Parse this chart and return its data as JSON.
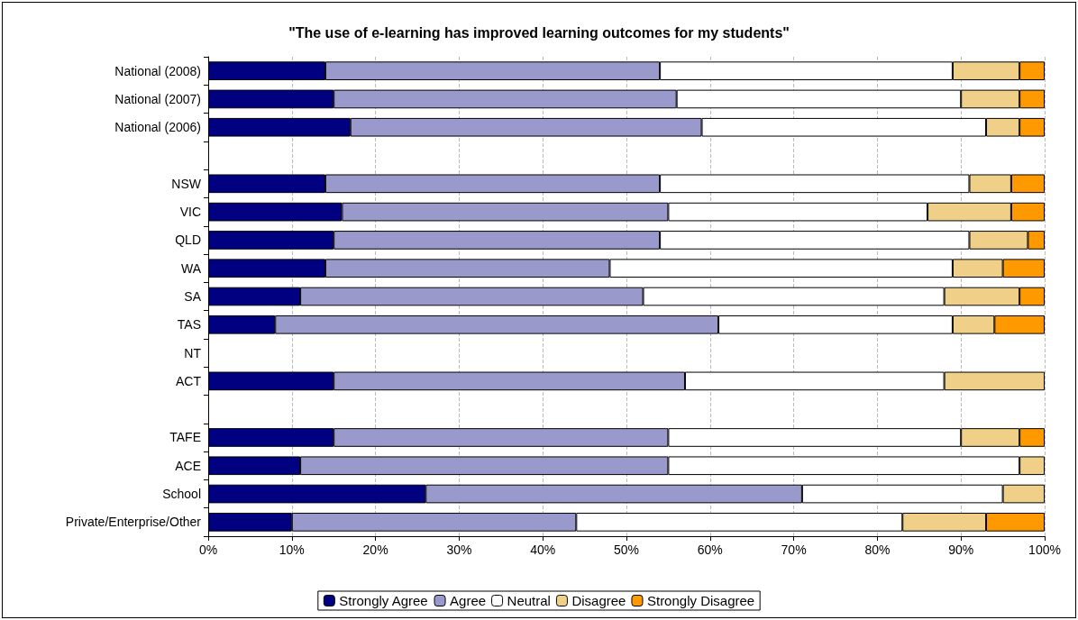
{
  "chart_data": {
    "type": "bar",
    "orientation": "horizontal",
    "stacked": true,
    "title": "\"The use of e-learning has improved learning outcomes for my students\"",
    "categories": [
      "National (2008)",
      "National (2007)",
      "National (2006)",
      null,
      "NSW",
      "VIC",
      "QLD",
      "WA",
      "SA",
      "TAS",
      "NT",
      "ACT",
      null,
      "TAFE",
      "ACE",
      "School",
      "Private/Enterprise/Other"
    ],
    "series": [
      {
        "name": "Strongly Agree",
        "color": "#000080",
        "values": [
          14,
          15,
          17,
          null,
          14,
          16,
          15,
          14,
          11,
          8,
          null,
          15,
          null,
          15,
          11,
          26,
          10
        ]
      },
      {
        "name": "Agree",
        "color": "#9999cc",
        "values": [
          40,
          41,
          42,
          null,
          40,
          39,
          39,
          34,
          41,
          53,
          null,
          42,
          null,
          40,
          44,
          45,
          34
        ]
      },
      {
        "name": "Neutral",
        "color": "#ffffff",
        "values": [
          35,
          34,
          34,
          null,
          37,
          31,
          37,
          41,
          36,
          28,
          null,
          31,
          null,
          35,
          42,
          24,
          39
        ]
      },
      {
        "name": "Disagree",
        "color": "#f0d088",
        "values": [
          8,
          7,
          4,
          null,
          5,
          10,
          7,
          6,
          9,
          5,
          null,
          12,
          null,
          7,
          3,
          5,
          10
        ]
      },
      {
        "name": "Strongly Disagree",
        "color": "#ff9900",
        "values": [
          3,
          3,
          3,
          null,
          4,
          4,
          2,
          5,
          3,
          6,
          null,
          null,
          null,
          3,
          null,
          null,
          7
        ]
      }
    ],
    "xlim": [
      0,
      100
    ],
    "xticks": [
      {
        "value": 0,
        "label": "0%"
      },
      {
        "value": 10,
        "label": "10%"
      },
      {
        "value": 20,
        "label": "20%"
      },
      {
        "value": 30,
        "label": "30%"
      },
      {
        "value": 40,
        "label": "40%"
      },
      {
        "value": 50,
        "label": "50%"
      },
      {
        "value": 60,
        "label": "60%"
      },
      {
        "value": 70,
        "label": "70%"
      },
      {
        "value": 80,
        "label": "80%"
      },
      {
        "value": 90,
        "label": "90%"
      },
      {
        "value": 100,
        "label": "100%"
      }
    ],
    "grid": "x",
    "legend": "bottom"
  }
}
